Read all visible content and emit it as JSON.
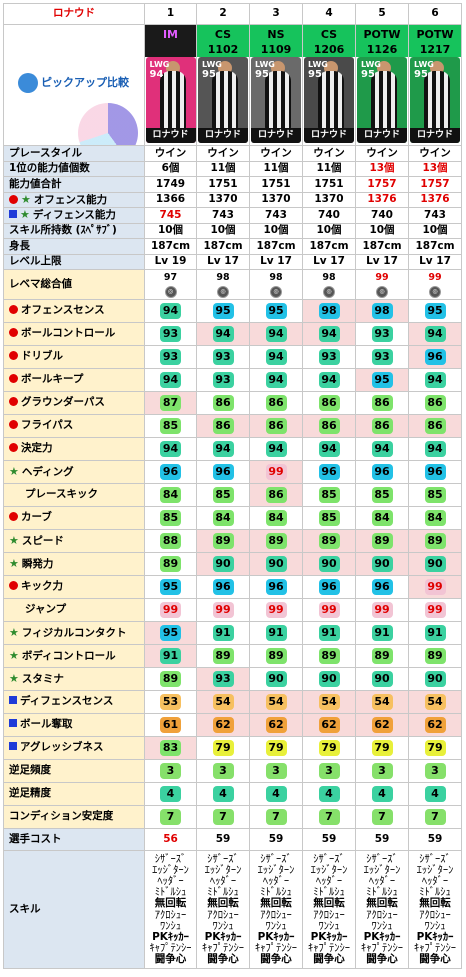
{
  "player_name": "ロナウド",
  "pickup_label": "ピックアップ比較",
  "columns": [
    {
      "num": "1",
      "type": "IM",
      "id": "",
      "card_pos": "LWG",
      "card_ovr": "94",
      "card_name": "ロナウド",
      "card_bg": "#e0307a"
    },
    {
      "num": "2",
      "type": "CS",
      "id": "1102",
      "card_pos": "LWG",
      "card_ovr": "95",
      "card_name": "ロナウド",
      "card_bg": "#555555"
    },
    {
      "num": "3",
      "type": "NS",
      "id": "1109",
      "card_pos": "LWG",
      "card_ovr": "95",
      "card_name": "ロナウド",
      "card_bg": "#6a6a6a"
    },
    {
      "num": "4",
      "type": "CS",
      "id": "1206",
      "card_pos": "LWG",
      "card_ovr": "95",
      "card_name": "ロナウド",
      "card_bg": "#4a4a4a"
    },
    {
      "num": "5",
      "type": "POTW",
      "id": "1126",
      "card_pos": "LWG",
      "card_ovr": "95",
      "card_name": "ロナウド",
      "card_bg": "#1f9a4a"
    },
    {
      "num": "6",
      "type": "POTW",
      "id": "1217",
      "card_pos": "LWG",
      "card_ovr": "95",
      "card_name": "ロナウド",
      "card_bg": "#1f9a4a"
    }
  ],
  "info_rows": [
    {
      "label": "プレースタイル",
      "vals": [
        "ウイン",
        "ウイン",
        "ウイン",
        "ウイン",
        "ウイン",
        "ウイン"
      ],
      "red": []
    },
    {
      "label": "1位の能力値個数",
      "vals": [
        "6個",
        "11個",
        "11個",
        "11個",
        "13個",
        "13個"
      ],
      "red": [
        4,
        5
      ]
    },
    {
      "label": "能力値合計",
      "vals": [
        "1749",
        "1751",
        "1751",
        "1751",
        "1757",
        "1757"
      ],
      "red": [
        4,
        5
      ]
    },
    {
      "label": "オフェンス能力",
      "vals": [
        "1366",
        "1370",
        "1370",
        "1370",
        "1376",
        "1376"
      ],
      "red": [
        4,
        5
      ]
    },
    {
      "label": "ディフェンス能力",
      "vals": [
        "745",
        "743",
        "743",
        "740",
        "740",
        "743"
      ],
      "red": [
        0
      ]
    },
    {
      "label": "スキル所持数 (ｽﾍﾟｻﾌﾞ)",
      "vals": [
        "10個",
        "10個",
        "10個",
        "10個",
        "10個",
        "10個"
      ],
      "red": []
    },
    {
      "label": "身長",
      "vals": [
        "187cm",
        "187cm",
        "187cm",
        "187cm",
        "187cm",
        "187cm"
      ],
      "red": []
    },
    {
      "label": "レベル上限",
      "vals": [
        "Lv 19",
        "Lv 17",
        "Lv 17",
        "Lv 17",
        "Lv 17",
        "Lv 17"
      ],
      "red": []
    }
  ],
  "lema": {
    "label": "レベマ総合値",
    "vals": [
      "97",
      "98",
      "98",
      "98",
      "99",
      "99"
    ],
    "red": [
      4,
      5
    ]
  },
  "stats": [
    {
      "label": "オフェンスセンス",
      "vals": [
        94,
        95,
        95,
        98,
        98,
        95
      ],
      "pink": [
        3,
        4
      ]
    },
    {
      "label": "ボールコントロール",
      "vals": [
        93,
        94,
        94,
        94,
        93,
        94
      ],
      "pink": [
        1,
        2,
        3,
        5
      ]
    },
    {
      "label": "ドリブル",
      "vals": [
        93,
        93,
        94,
        93,
        93,
        96
      ],
      "pink": [
        5
      ]
    },
    {
      "label": "ボールキープ",
      "vals": [
        94,
        93,
        94,
        94,
        95,
        94
      ],
      "pink": [
        4
      ]
    },
    {
      "label": "グラウンダーパス",
      "vals": [
        87,
        86,
        86,
        86,
        86,
        86
      ],
      "pink": [
        0
      ]
    },
    {
      "label": "フライパス",
      "vals": [
        85,
        86,
        86,
        86,
        86,
        86
      ],
      "pink": [
        1,
        2,
        3,
        4,
        5
      ]
    },
    {
      "label": "決定力",
      "vals": [
        94,
        94,
        94,
        94,
        94,
        94
      ],
      "pink": []
    },
    {
      "label": "ヘディング",
      "vals": [
        96,
        96,
        99,
        96,
        96,
        96
      ],
      "pink": [
        2
      ]
    },
    {
      "label": "プレースキック",
      "vals": [
        84,
        85,
        86,
        85,
        85,
        85
      ],
      "pink": [
        2
      ]
    },
    {
      "label": "カーブ",
      "vals": [
        85,
        84,
        84,
        85,
        84,
        84
      ],
      "pink": []
    },
    {
      "label": "スピード",
      "vals": [
        88,
        89,
        89,
        89,
        89,
        89
      ],
      "pink": [
        1,
        2,
        3,
        4,
        5
      ]
    },
    {
      "label": "瞬発力",
      "vals": [
        89,
        90,
        90,
        90,
        90,
        90
      ],
      "pink": [
        1,
        2,
        3,
        4,
        5
      ]
    },
    {
      "label": "キック力",
      "vals": [
        95,
        96,
        96,
        96,
        96,
        99
      ],
      "pink": [
        5
      ]
    },
    {
      "label": "ジャンプ",
      "vals": [
        99,
        99,
        99,
        99,
        99,
        99
      ],
      "pink": []
    },
    {
      "label": "フィジカルコンタクト",
      "vals": [
        95,
        91,
        91,
        91,
        91,
        91
      ],
      "pink": [
        0
      ]
    },
    {
      "label": "ボディコントロール",
      "vals": [
        91,
        89,
        89,
        89,
        89,
        89
      ],
      "pink": [
        0
      ]
    },
    {
      "label": "スタミナ",
      "vals": [
        89,
        93,
        90,
        90,
        90,
        90
      ],
      "pink": [
        1
      ]
    },
    {
      "label": "ディフェンスセンス",
      "vals": [
        53,
        54,
        54,
        54,
        54,
        54
      ],
      "pink": [
        1,
        2,
        3,
        4,
        5
      ]
    },
    {
      "label": "ボール奪取",
      "vals": [
        61,
        62,
        62,
        62,
        62,
        62
      ],
      "pink": [
        1,
        2,
        3,
        4,
        5
      ]
    },
    {
      "label": "アグレッシブネス",
      "vals": [
        83,
        79,
        79,
        79,
        79,
        79
      ],
      "pink": [
        0
      ]
    }
  ],
  "extra": [
    {
      "label": "逆足頻度",
      "vals": [
        3,
        3,
        3,
        3,
        3,
        3
      ]
    },
    {
      "label": "逆足精度",
      "vals": [
        4,
        4,
        4,
        4,
        4,
        4
      ]
    },
    {
      "label": "コンディション安定度",
      "vals": [
        7,
        7,
        7,
        7,
        7,
        7
      ]
    }
  ],
  "cost": {
    "label": "選手コスト",
    "vals": [
      "56",
      "59",
      "59",
      "59",
      "59",
      "59"
    ],
    "red": [
      0
    ]
  },
  "skills_label": "スキル",
  "skills": [
    "ｼｻﾞｰｽﾞ\nｴｯｼﾞﾀｰﾝ\nﾍｯﾀﾞｰ\nﾐﾄﾞﾙｼｭ\n無回転\nｱｸﾛｼｭｰ\nﾜﾝｼｭ\nPKｷｯｶｰ\nｷｬﾌﾟﾃﾝｼｰ\n闘争心",
    "ｼｻﾞｰｽﾞ\nｴｯｼﾞﾀｰﾝ\nﾍｯﾀﾞｰ\nﾐﾄﾞﾙｼｭ\n無回転\nｱｸﾛｼｭｰ\nﾜﾝｼｭ\nPKｷｯｶｰ\nｷｬﾌﾟﾃﾝｼｰ\n闘争心",
    "ｼｻﾞｰｽﾞ\nｴｯｼﾞﾀｰﾝ\nﾍｯﾀﾞｰ\nﾐﾄﾞﾙｼｭ\n無回転\nｱｸﾛｼｭｰ\nﾜﾝｼｭ\nPKｷｯｶｰ\nｷｬﾌﾟﾃﾝｼｰ\n闘争心",
    "ｼｻﾞｰｽﾞ\nｴｯｼﾞﾀｰﾝ\nﾍｯﾀﾞｰ\nﾐﾄﾞﾙｼｭ\n無回転\nｱｸﾛｼｭｰ\nﾜﾝｼｭ\nPKｷｯｶｰ\nｷｬﾌﾟﾃﾝｼｰ\n闘争心",
    "ｼｻﾞｰｽﾞ\nｴｯｼﾞﾀｰﾝ\nﾍｯﾀﾞｰ\nﾐﾄﾞﾙｼｭ\n無回転\nｱｸﾛｼｭｰ\nﾜﾝｼｭ\nPKｷｯｶｰ\nｷｬﾌﾟﾃﾝｼｰ\n闘争心",
    "ｼｻﾞｰｽﾞ\nｴｯｼﾞﾀｰﾝ\nﾍｯﾀﾞｰ\nﾐﾄﾞﾙｼｭ\n無回転\nｱｸﾛｼｭｰ\nﾜﾝｼｭ\nPKｷｯｶｰ\nｷｬﾌﾟﾃﾝｼｰ\n闘争心"
  ],
  "colors": {
    "badge_green_bright": "#7ee36b",
    "badge_green": "#3bd1a0",
    "badge_cyan": "#22c1e6",
    "badge_pink": "#f2c4d4",
    "badge_yellow": "#e8f03a",
    "badge_orange": "#f0a13a",
    "badge_orange_light": "#f7c060",
    "red": "#e00000",
    "blue_marker": "#1f3bd8",
    "green_star": "#2e8b2e",
    "header_green": "#16c35c",
    "header_im": "#1a1a1a"
  },
  "icon_names": [
    "red-dot-icon",
    "blue-square-icon",
    "green-star-icon",
    "coin-icon",
    "avatar-icon"
  ]
}
